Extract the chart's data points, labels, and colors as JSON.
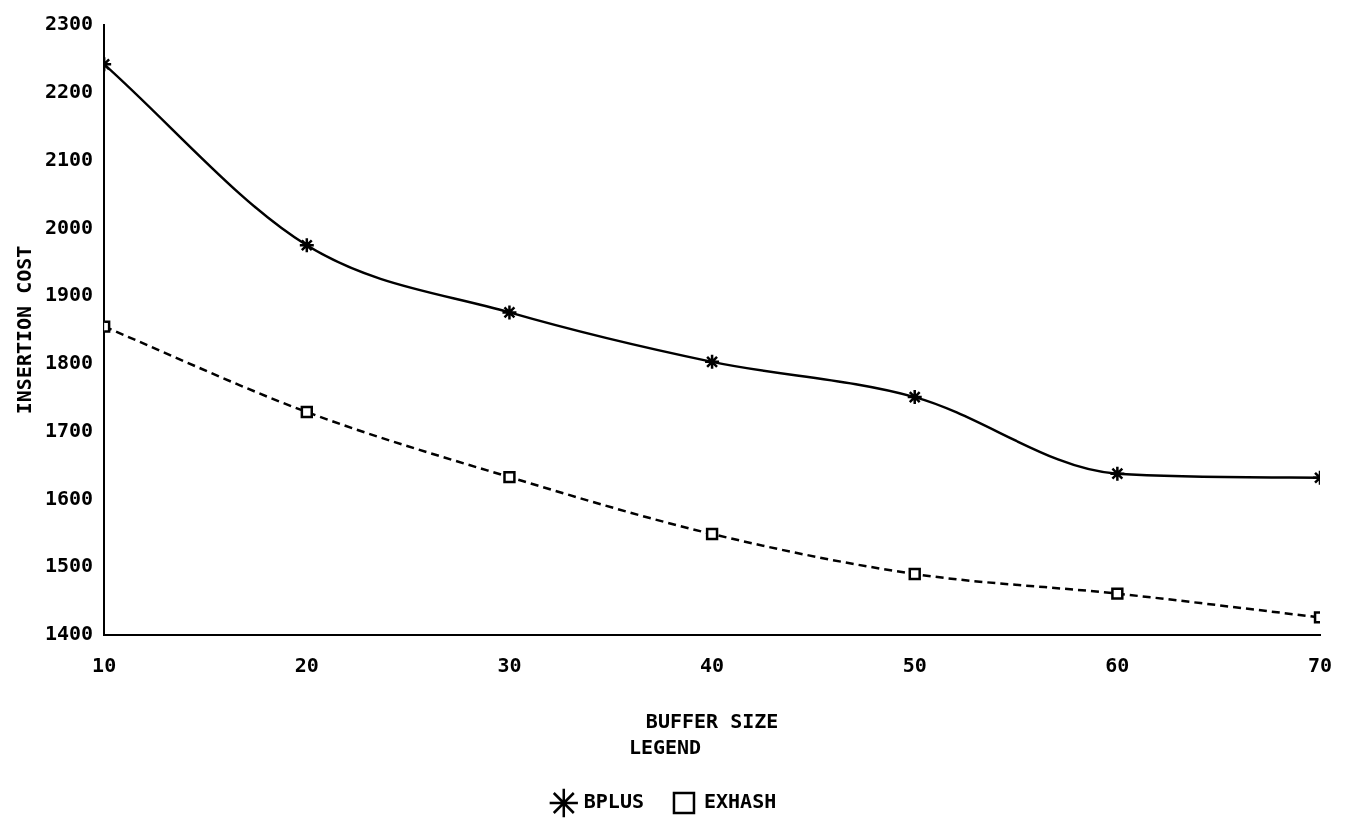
{
  "chart_data": {
    "type": "line",
    "xlabel": "BUFFER SIZE",
    "ylabel": "INSERTION COST",
    "legend_title": "LEGEND",
    "x": [
      10,
      20,
      30,
      40,
      50,
      60,
      70
    ],
    "series": [
      {
        "name": "BPLUS",
        "color": "#000000",
        "marker": "cross",
        "line_style": "solid",
        "values": [
          2242,
          1975,
          1876,
          1803,
          1751,
          1638,
          1632
        ]
      },
      {
        "name": "EXHASH",
        "color": "#000000",
        "marker": "square",
        "line_style": "dashed",
        "values": [
          1855,
          1729,
          1633,
          1549,
          1490,
          1461,
          1426
        ]
      }
    ],
    "xlim": [
      10,
      70
    ],
    "xticks": [
      10,
      20,
      30,
      40,
      50,
      60,
      70
    ],
    "ylim": [
      1400,
      2300
    ],
    "yticks": [
      1400,
      1500,
      1600,
      1700,
      1800,
      1900,
      2000,
      2100,
      2200,
      2300
    ],
    "grid": false,
    "legend": "bottom"
  }
}
